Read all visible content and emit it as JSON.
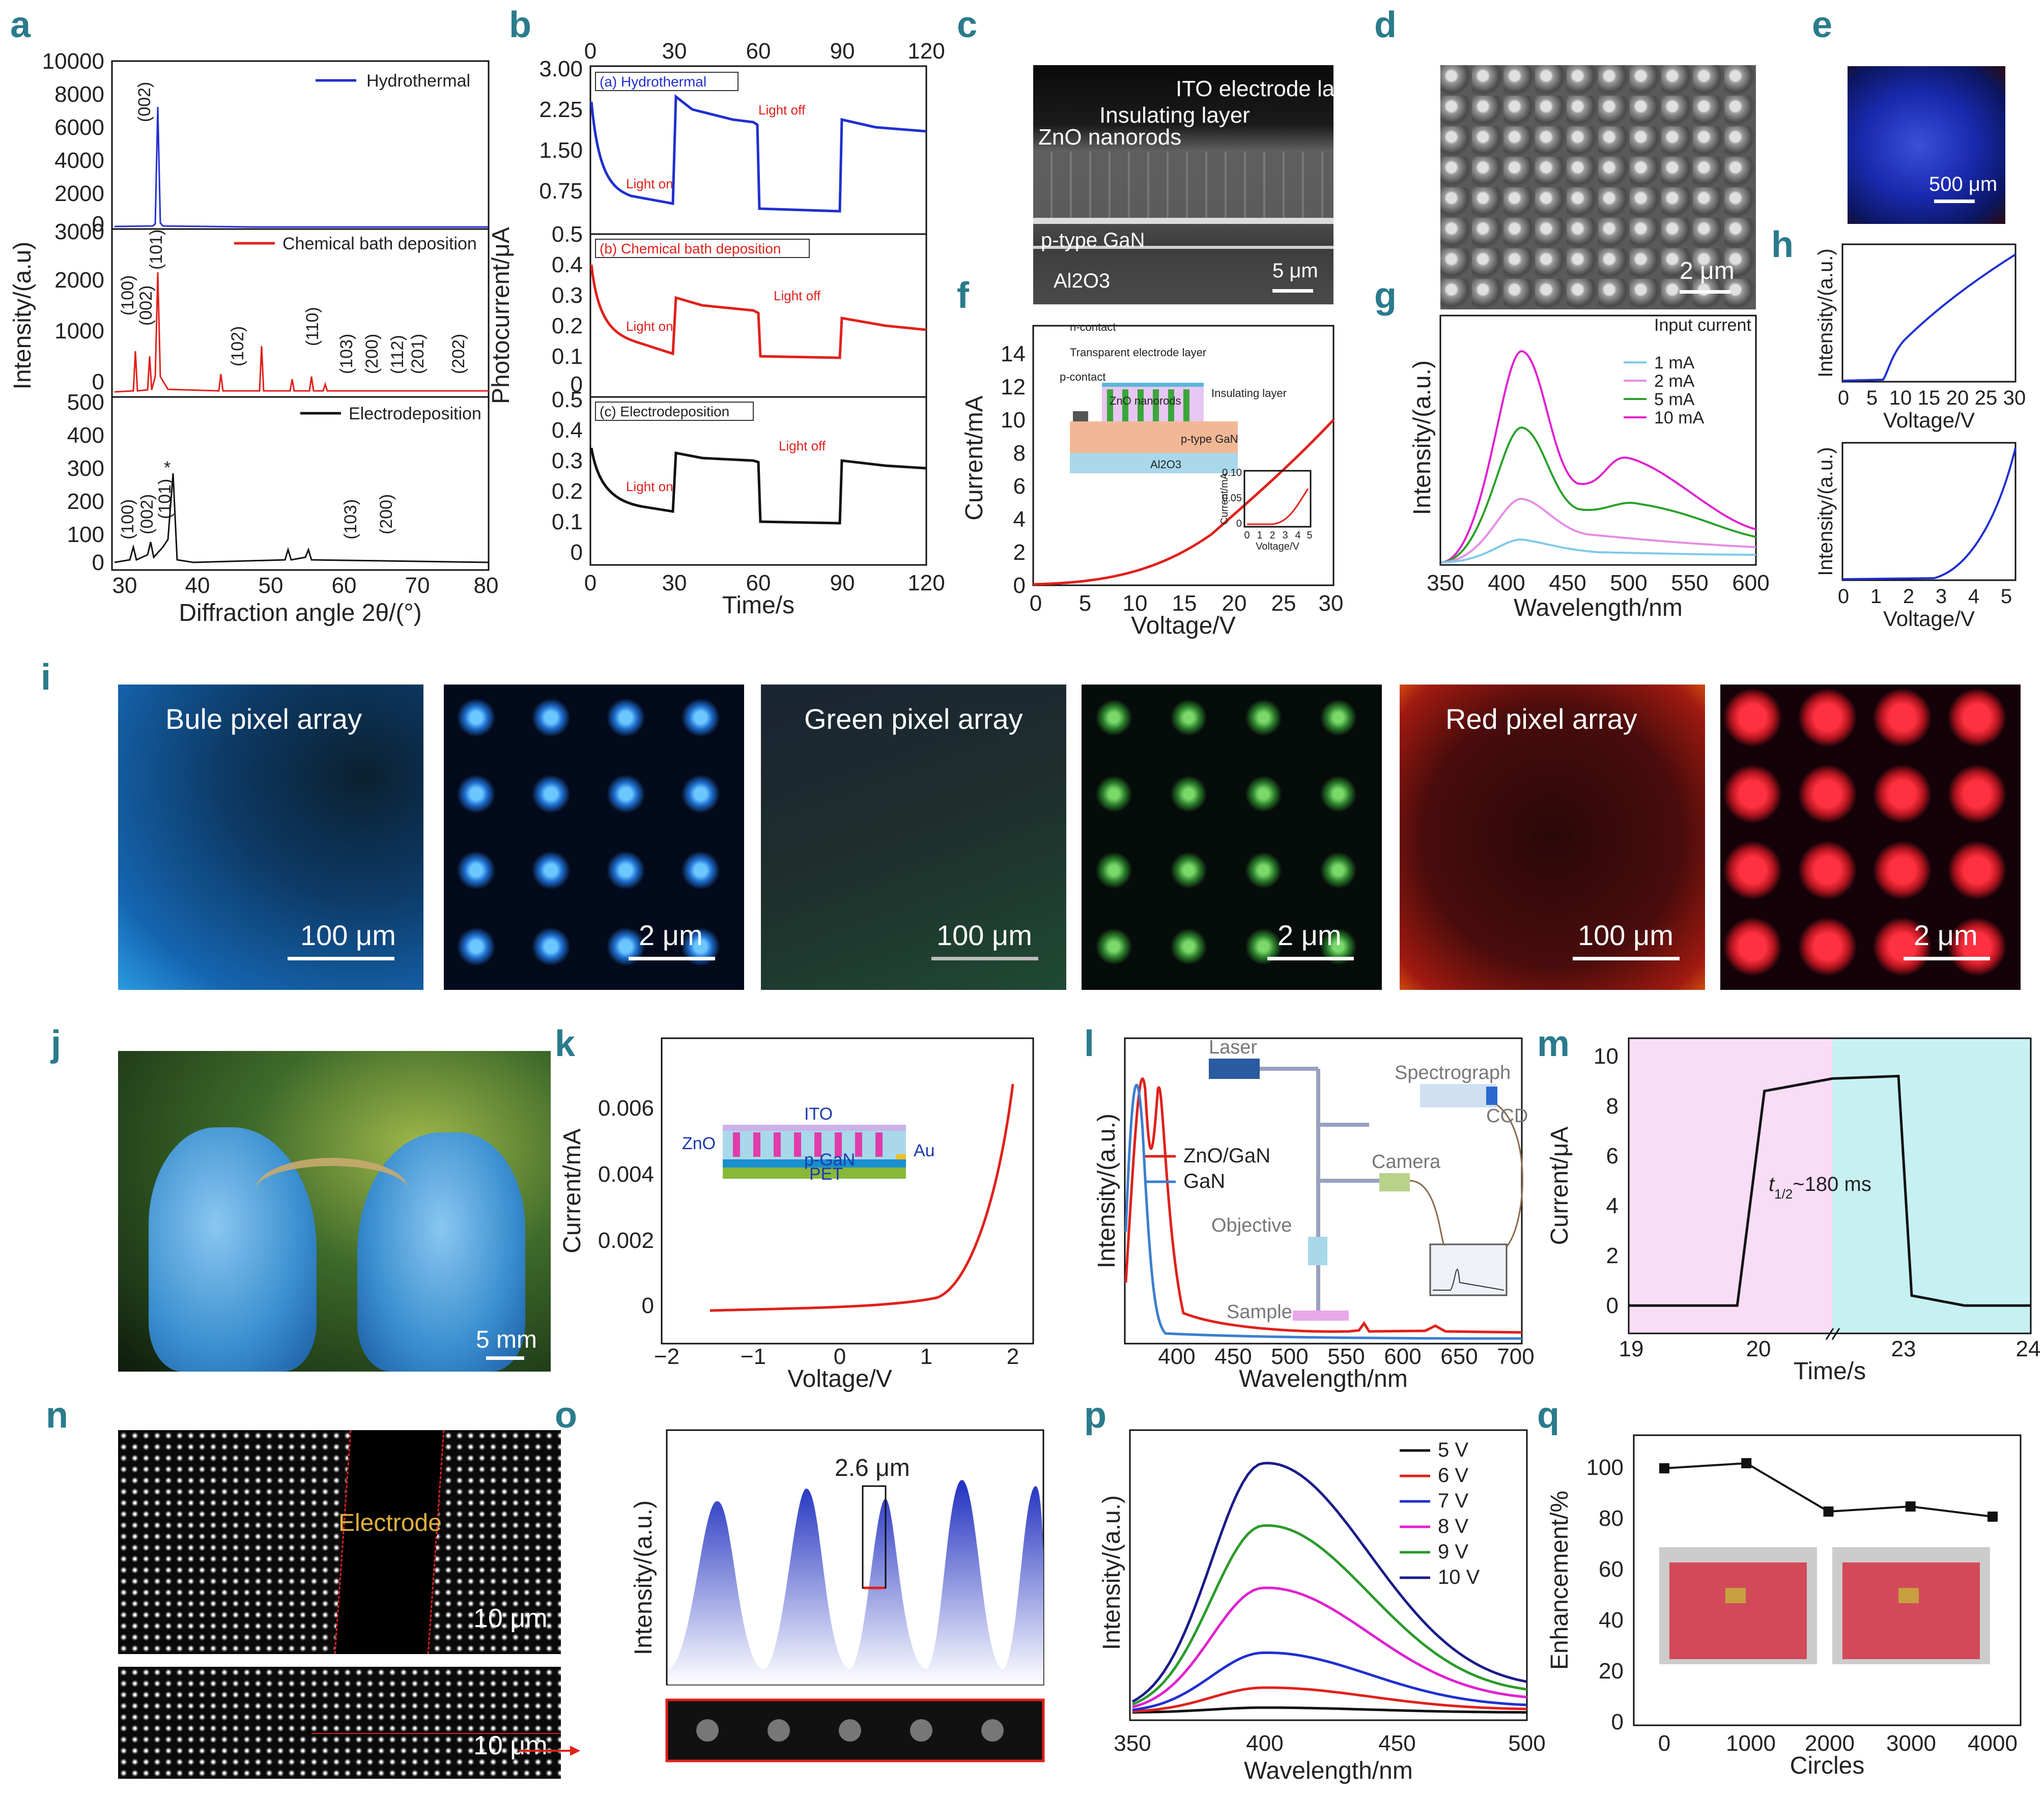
{
  "panel_labels": [
    "a",
    "b",
    "c",
    "d",
    "e",
    "f",
    "g",
    "h",
    "i",
    "j",
    "k",
    "l",
    "m",
    "n",
    "o",
    "p",
    "q"
  ],
  "a": {
    "ylabel": "Intensity/(a.u)",
    "xlabel": "Diffraction angle 2θ/(°)",
    "xticks": [
      "30",
      "40",
      "50",
      "60",
      "70",
      "80"
    ],
    "top": {
      "legend": "Hydrothermal",
      "yticks": [
        "0",
        "2000",
        "4000",
        "6000",
        "8000",
        "10000"
      ],
      "peaks": [
        "(002)"
      ]
    },
    "mid": {
      "legend": "Chemical bath deposition",
      "yticks": [
        "0",
        "1000",
        "2000",
        "3000"
      ],
      "peaks": [
        "(100)",
        "(002)",
        "(101)",
        "(102)",
        "(110)",
        "(103)",
        "(200)",
        "(112)",
        "(201)",
        "(202)"
      ]
    },
    "bot": {
      "legend": "Electrodeposition",
      "yticks": [
        "0",
        "100",
        "200",
        "300",
        "400",
        "500"
      ],
      "peaks": [
        "(100)",
        "(002)",
        "(101)",
        "*",
        "(103)",
        "(200)"
      ]
    }
  },
  "b": {
    "ylabel": "Photocurrent/μA",
    "xlabel": "Time/s",
    "xticks": [
      "0",
      "30",
      "60",
      "90",
      "120"
    ],
    "top": {
      "title": "(a) Hydrothermal",
      "yticks": [
        "0.75",
        "1.50",
        "2.25",
        "3.00"
      ],
      "on": "Light on",
      "off": "Light off"
    },
    "mid": {
      "title": "(b) Chemical bath deposition",
      "yticks": [
        "0",
        "0.1",
        "0.2",
        "0.3",
        "0.4",
        "0.5"
      ],
      "on": "Light on",
      "off": "Light off"
    },
    "bot": {
      "title": "(c) Electrodeposition",
      "yticks": [
        "0",
        "0.1",
        "0.2",
        "0.3",
        "0.4",
        "0.5"
      ],
      "on": "Light on",
      "off": "Light off"
    }
  },
  "c": {
    "labels": [
      "ITO electrode layer",
      "Insulating layer",
      "ZnO nanorods",
      "p-type GaN",
      "Al2O3"
    ],
    "scale": "5 μm"
  },
  "d": {
    "scale": "2 μm"
  },
  "e": {
    "scale": "500 μm"
  },
  "f": {
    "ylabel": "Current/mA",
    "xlabel": "Voltage/V",
    "xticks": [
      "0",
      "5",
      "10",
      "15",
      "20",
      "25",
      "30"
    ],
    "yticks": [
      "0",
      "2",
      "4",
      "6",
      "8",
      "10",
      "12",
      "14"
    ],
    "inset_labels": [
      "n-contact",
      "Transparent electrode layer",
      "p-contact",
      "ZnO nanorods",
      "Insulating layer",
      "p-type GaN",
      "Al2O3"
    ],
    "inset2": {
      "ylabel": "Current/mA",
      "xlabel": "Voltage/V",
      "yticks": [
        "0",
        "0.05",
        "0.10"
      ],
      "xticks": [
        "0",
        "1",
        "2",
        "3",
        "4",
        "5"
      ]
    }
  },
  "g": {
    "ylabel": "Intensity/(a.u.)",
    "xlabel": "Wavelength/nm",
    "xticks": [
      "350",
      "400",
      "450",
      "500",
      "550",
      "600"
    ],
    "legend_title": "Input current",
    "legend": [
      "1 mA",
      "2 mA",
      "5 mA",
      "10 mA"
    ]
  },
  "h": {
    "ylabel": "Intensity/(a.u.)",
    "xlabel": "Voltage/V",
    "top_xticks": [
      "0",
      "5",
      "10",
      "15",
      "20",
      "25",
      "30"
    ],
    "bot_xticks": [
      "0",
      "1",
      "2",
      "3",
      "4",
      "5"
    ]
  },
  "i": {
    "tiles": [
      {
        "title": "Bule pixel array",
        "scale": "100 μm"
      },
      {
        "title": "",
        "scale": "2 μm"
      },
      {
        "title": "Green pixel array",
        "scale": "100 μm"
      },
      {
        "title": "",
        "scale": "2 μm"
      },
      {
        "title": "Red pixel array",
        "scale": "100 μm"
      },
      {
        "title": "",
        "scale": "2 μm"
      }
    ]
  },
  "j": {
    "scale": "5 mm"
  },
  "k": {
    "ylabel": "Current/mA",
    "xlabel": "Voltage/V",
    "xticks": [
      "−2",
      "−1",
      "0",
      "1",
      "2"
    ],
    "yticks": [
      "0",
      "0.002",
      "0.004",
      "0.006"
    ],
    "inset_labels": [
      "ITO",
      "ZnO",
      "Au",
      "p-GaN",
      "PET"
    ]
  },
  "l": {
    "ylabel": "Intensity/(a.u.)",
    "xlabel": "Wavelength/nm",
    "xticks": [
      "400",
      "450",
      "500",
      "550",
      "600",
      "650",
      "700"
    ],
    "legend": [
      "ZnO/GaN",
      "GaN"
    ],
    "setup": [
      "Laser",
      "Spectrograph",
      "CCD",
      "Camera",
      "Objective",
      "Sample"
    ]
  },
  "m": {
    "ylabel": "Current/μA",
    "xlabel": "Time/s",
    "xticks": [
      "19",
      "20",
      "23",
      "24"
    ],
    "yticks": [
      "0",
      "2",
      "4",
      "6",
      "8",
      "10"
    ],
    "annotation_t": "t",
    "annotation_sub": "1/2",
    "annotation_rest": "~180 ms"
  },
  "n": {
    "label": "Electrode",
    "scale": "10 μm"
  },
  "o": {
    "ylabel": "Intensity/(a.u.)",
    "dim": "2.6 μm"
  },
  "p": {
    "ylabel": "Intensity/(a.u.)",
    "xlabel": "Wavelength/nm",
    "xticks": [
      "350",
      "400",
      "450",
      "500"
    ],
    "legend": [
      "5 V",
      "6 V",
      "7 V",
      "8 V",
      "9 V",
      "10 V"
    ]
  },
  "q": {
    "ylabel": "Enhancement/%",
    "xlabel": "Circles",
    "xticks": [
      "0",
      "1000",
      "2000",
      "3000",
      "4000"
    ],
    "yticks": [
      "0",
      "20",
      "40",
      "60",
      "80",
      "100"
    ]
  },
  "chart_data": [
    {
      "panel": "m",
      "type": "line",
      "x": [
        19,
        19.5,
        19.8,
        20,
        20.5,
        23,
        23.1,
        23.5,
        24
      ],
      "values": [
        0.2,
        0.2,
        0.2,
        8.8,
        9.3,
        9.4,
        0.6,
        0.2,
        0.2
      ],
      "ylim": [
        0,
        10
      ]
    },
    {
      "panel": "q",
      "type": "line",
      "x": [
        0,
        1000,
        2000,
        3000,
        4000
      ],
      "values": [
        100,
        102,
        83,
        85,
        81
      ],
      "ylim": [
        0,
        110
      ]
    },
    {
      "panel": "p",
      "type": "line",
      "x": [
        350,
        400,
        500
      ],
      "series": [
        {
          "name": "5 V",
          "values": [
            0,
            2,
            0
          ]
        },
        {
          "name": "6 V",
          "values": [
            0,
            10,
            1
          ]
        },
        {
          "name": "7 V",
          "values": [
            0,
            24,
            2
          ]
        },
        {
          "name": "8 V",
          "values": [
            0,
            50,
            4
          ]
        },
        {
          "name": "9 V",
          "values": [
            0,
            75,
            6
          ]
        },
        {
          "name": "10 V",
          "values": [
            0,
            100,
            8
          ]
        }
      ]
    }
  ],
  "colors": {
    "label": "#2a7b8c",
    "blue": "#1f2fd0",
    "red": "#e0201a",
    "green": "#2aa02a",
    "magenta": "#e020d0",
    "navy": "#1a1a8a"
  }
}
